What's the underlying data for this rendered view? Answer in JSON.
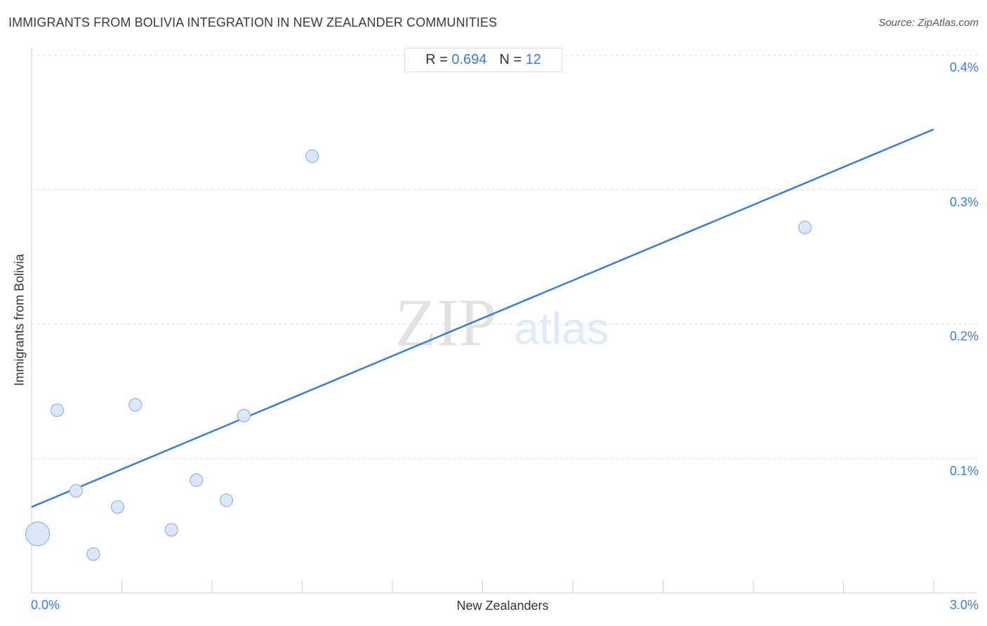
{
  "title": "IMMIGRANTS FROM BOLIVIA INTEGRATION IN NEW ZEALANDER COMMUNITIES",
  "source": "Source: ZipAtlas.com",
  "stats": {
    "r_label": "R =",
    "r_value": "0.694",
    "n_label": "N =",
    "n_value": "12"
  },
  "watermark": {
    "zip": "ZIP",
    "atlas": "atlas"
  },
  "colors": {
    "accent": "#3a7bd5",
    "point_fill": "#dce8f8",
    "point_stroke": "#8fb3e6",
    "grid": "#dddddd"
  },
  "chart_data": {
    "type": "scatter",
    "xlabel": "New Zealanders",
    "ylabel": "Immigrants from Bolivia",
    "xlim": [
      0,
      3.0
    ],
    "ylim": [
      0,
      0.4
    ],
    "x_tick_labels": [
      {
        "value": 0,
        "label": "0.0%"
      },
      {
        "value": 3.0,
        "label": "3.0%"
      }
    ],
    "y_tick_labels": [
      {
        "value": 0.1,
        "label": "0.1%"
      },
      {
        "value": 0.2,
        "label": "0.2%"
      },
      {
        "value": 0.3,
        "label": "0.3%"
      },
      {
        "value": 0.4,
        "label": "0.4%"
      }
    ],
    "grid": true,
    "points": [
      {
        "x": 0.02,
        "y": 0.044,
        "size": "large"
      },
      {
        "x": 0.085,
        "y": 0.136,
        "size": "normal"
      },
      {
        "x": 0.148,
        "y": 0.076,
        "size": "normal"
      },
      {
        "x": 0.205,
        "y": 0.029,
        "size": "normal"
      },
      {
        "x": 0.286,
        "y": 0.064,
        "size": "normal"
      },
      {
        "x": 0.345,
        "y": 0.14,
        "size": "normal"
      },
      {
        "x": 0.465,
        "y": 0.047,
        "size": "normal"
      },
      {
        "x": 0.548,
        "y": 0.084,
        "size": "normal"
      },
      {
        "x": 0.648,
        "y": 0.069,
        "size": "normal"
      },
      {
        "x": 0.706,
        "y": 0.132,
        "size": "normal"
      },
      {
        "x": 0.933,
        "y": 0.325,
        "size": "normal"
      },
      {
        "x": 2.572,
        "y": 0.272,
        "size": "normal"
      }
    ],
    "trendline": {
      "x": [
        0.0,
        3.0
      ],
      "y": [
        0.064,
        0.345
      ]
    }
  }
}
